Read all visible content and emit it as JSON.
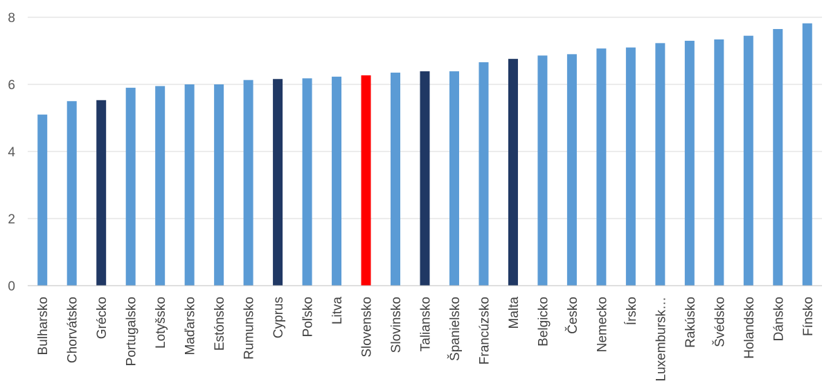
{
  "chart_data": {
    "type": "bar",
    "title": "",
    "xlabel": "",
    "ylabel": "",
    "ylim": [
      0,
      8
    ],
    "y_ticks": [
      "0",
      "2",
      "4",
      "6",
      "8"
    ],
    "grid": true,
    "legend": "none",
    "categories": [
      "Bulharsko",
      "Chorvátsko",
      "Grécko",
      "Portugalsko",
      "Lotyšsko",
      "Maďarsko",
      "Estónsko",
      "Rumunsko",
      "Cyprus",
      "Poľsko",
      "Litva",
      "Slovensko",
      "Slovinsko",
      "Taliansko",
      "Španielsko",
      "Francúzsko",
      "Malta",
      "Belgicko",
      "Česko",
      "Nemecko",
      "Írsko",
      "Luxembursko",
      "Rakúsko",
      "Švédsko",
      "Holandsko",
      "Dánsko",
      "Fínsko"
    ],
    "category_labels": [
      "Bulharsko",
      "Chorvátsko",
      "Grécko",
      "Portugalsko",
      "Lotyšsko",
      "Maďarsko",
      "Estónsko",
      "Rumunsko",
      "Cyprus",
      "Poľsko",
      "Litva",
      "Slovensko",
      "Slovinsko",
      "Taliansko",
      "Španielsko",
      "Francúzsko",
      "Malta",
      "Belgicko",
      "Česko",
      "Nemecko",
      "Írsko",
      "Luxembursk…",
      "Rakúsko",
      "Švédsko",
      "Holandsko",
      "Dánsko",
      "Fínsko"
    ],
    "values": [
      5.1,
      5.5,
      5.53,
      5.9,
      5.95,
      6.0,
      6.0,
      6.13,
      6.16,
      6.18,
      6.23,
      6.27,
      6.35,
      6.39,
      6.39,
      6.66,
      6.76,
      6.86,
      6.9,
      7.07,
      7.1,
      7.23,
      7.3,
      7.34,
      7.45,
      7.65,
      7.82
    ],
    "bar_colors": [
      "#5b9bd5",
      "#5b9bd5",
      "#203864",
      "#5b9bd5",
      "#5b9bd5",
      "#5b9bd5",
      "#5b9bd5",
      "#5b9bd5",
      "#203864",
      "#5b9bd5",
      "#5b9bd5",
      "#ff0000",
      "#5b9bd5",
      "#203864",
      "#5b9bd5",
      "#5b9bd5",
      "#203864",
      "#5b9bd5",
      "#5b9bd5",
      "#5b9bd5",
      "#5b9bd5",
      "#5b9bd5",
      "#5b9bd5",
      "#5b9bd5",
      "#5b9bd5",
      "#5b9bd5",
      "#5b9bd5"
    ],
    "colors": {
      "default": "#5b9bd5",
      "highlight_dark": "#203864",
      "highlight_red": "#ff0000",
      "gridline": "#d9d9d9",
      "axis": "#bfbfbf",
      "text": "#595959"
    }
  }
}
